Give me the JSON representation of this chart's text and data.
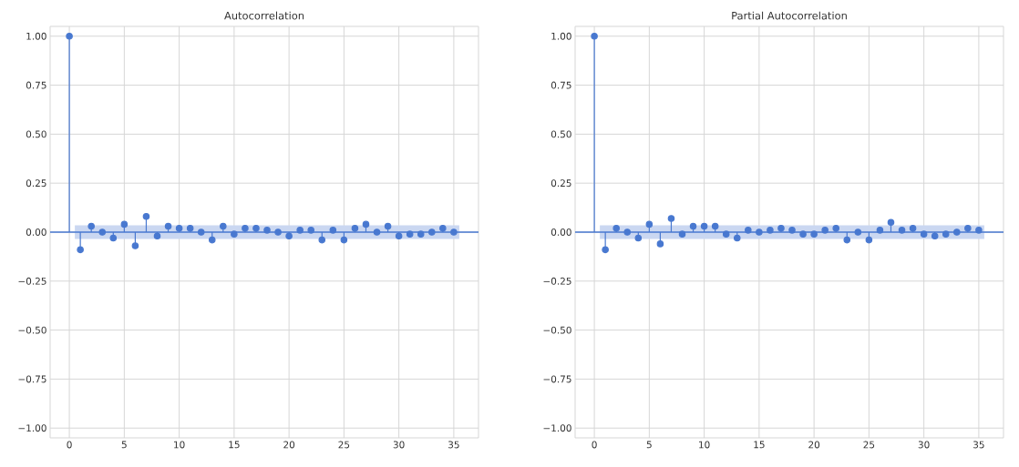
{
  "chart_data": [
    {
      "type": "lollipop",
      "title": "Autocorrelation",
      "x": [
        0,
        1,
        2,
        3,
        4,
        5,
        6,
        7,
        8,
        9,
        10,
        11,
        12,
        13,
        14,
        15,
        16,
        17,
        18,
        19,
        20,
        21,
        22,
        23,
        24,
        25,
        26,
        27,
        28,
        29,
        30,
        31,
        32,
        33,
        34,
        35
      ],
      "values": [
        1,
        -0.09,
        0.03,
        0.0,
        -0.03,
        0.04,
        -0.07,
        0.08,
        -0.02,
        0.03,
        0.02,
        0.02,
        0.0,
        -0.04,
        0.03,
        -0.01,
        0.02,
        0.02,
        0.01,
        0.0,
        -0.02,
        0.01,
        0.01,
        -0.04,
        0.01,
        -0.04,
        0.02,
        0.04,
        0.0,
        0.03,
        -0.02,
        -0.01,
        -0.01,
        0.0,
        0.02,
        0.0
      ],
      "color": "#4878d0",
      "marker": "circle",
      "grid": true,
      "bands": [
        {
          "axis": "y",
          "from": -0.035,
          "to": 0.035,
          "color": "#cad7f1"
        }
      ],
      "ref_lines": [
        {
          "axis": "y",
          "value": 0,
          "color": "#4878d0"
        }
      ],
      "xlim": [
        -1.75,
        37.25
      ],
      "ylim": [
        -1.05,
        1.05
      ],
      "xticks": [
        0,
        5,
        10,
        15,
        20,
        25,
        30,
        35
      ],
      "yticks": [
        {
          "value": -1,
          "label": "−1.00"
        },
        {
          "value": -0.75,
          "label": "−0.75"
        },
        {
          "value": -0.5,
          "label": "−0.50"
        },
        {
          "value": -0.25,
          "label": "−0.25"
        },
        {
          "value": 0,
          "label": "0.00"
        },
        {
          "value": 0.25,
          "label": "0.25"
        },
        {
          "value": 0.5,
          "label": "0.50"
        },
        {
          "value": 0.75,
          "label": "0.75"
        },
        {
          "value": 1,
          "label": "1.00"
        }
      ]
    },
    {
      "type": "lollipop",
      "title": "Partial Autocorrelation",
      "x": [
        0,
        1,
        2,
        3,
        4,
        5,
        6,
        7,
        8,
        9,
        10,
        11,
        12,
        13,
        14,
        15,
        16,
        17,
        18,
        19,
        20,
        21,
        22,
        23,
        24,
        25,
        26,
        27,
        28,
        29,
        30,
        31,
        32,
        33,
        34,
        35
      ],
      "values": [
        1,
        -0.09,
        0.02,
        0.0,
        -0.03,
        0.04,
        -0.06,
        0.07,
        -0.01,
        0.03,
        0.03,
        0.03,
        -0.01,
        -0.03,
        0.01,
        0.0,
        0.01,
        0.02,
        0.01,
        -0.01,
        -0.01,
        0.01,
        0.02,
        -0.04,
        0.0,
        -0.04,
        0.01,
        0.05,
        0.01,
        0.02,
        -0.01,
        -0.02,
        -0.01,
        0.0,
        0.02,
        0.01
      ],
      "color": "#4878d0",
      "marker": "circle",
      "grid": true,
      "bands": [
        {
          "axis": "y",
          "from": -0.035,
          "to": 0.035,
          "color": "#cad7f1"
        }
      ],
      "ref_lines": [
        {
          "axis": "y",
          "value": 0,
          "color": "#4878d0"
        }
      ],
      "xlim": [
        -1.75,
        37.25
      ],
      "ylim": [
        -1.05,
        1.05
      ],
      "xticks": [
        0,
        5,
        10,
        15,
        20,
        25,
        30,
        35
      ],
      "yticks": [
        {
          "value": -1,
          "label": "−1.00"
        },
        {
          "value": -0.75,
          "label": "−0.75"
        },
        {
          "value": -0.5,
          "label": "−0.50"
        },
        {
          "value": -0.25,
          "label": "−0.25"
        },
        {
          "value": 0,
          "label": "0.00"
        },
        {
          "value": 0.25,
          "label": "0.25"
        },
        {
          "value": 0.5,
          "label": "0.50"
        },
        {
          "value": 0.75,
          "label": "0.75"
        },
        {
          "value": 1,
          "label": "1.00"
        }
      ]
    }
  ]
}
